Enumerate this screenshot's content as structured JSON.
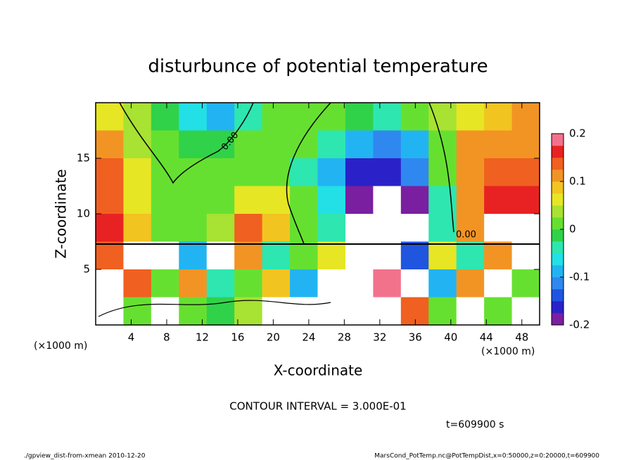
{
  "chart_data": {
    "type": "heatmap",
    "title": "disturbunce of potential temperature",
    "xlabel": "X-coordinate",
    "ylabel": "Z-coordinate",
    "xunit": "(×1000 m)",
    "xlim": [
      0,
      50
    ],
    "xticks": [
      4,
      8,
      12,
      16,
      20,
      24,
      28,
      32,
      36,
      40,
      44,
      48
    ],
    "ylim": [
      0,
      20
    ],
    "yticks": [
      5,
      10,
      15
    ],
    "clim": [
      -0.2,
      0.2
    ],
    "cticks": [
      -0.2,
      -0.1,
      0,
      0.1,
      0.2
    ],
    "colorscale": [
      "#7a1fa0",
      "#2a22c8",
      "#2055e0",
      "#2f88f0",
      "#22b4f2",
      "#22e0e6",
      "#2ee6b0",
      "#30d24a",
      "#66e030",
      "#a8e232",
      "#e6e624",
      "#f2c420",
      "#f29424",
      "#f06020",
      "#e82222",
      "#f2728c"
    ],
    "z": [
      [
        0.05,
        0.03,
        -0.02,
        -0.07,
        -0.08,
        -0.04,
        0.0,
        0.01,
        0.0,
        -0.02,
        -0.05,
        0.0,
        0.03,
        0.06,
        0.09,
        0.1
      ],
      [
        0.1,
        0.04,
        0.0,
        -0.02,
        -0.01,
        0.0,
        0.01,
        0.0,
        -0.04,
        -0.1,
        -0.12,
        -0.08,
        0.02,
        0.1,
        0.12,
        0.12
      ],
      [
        0.13,
        0.05,
        0.01,
        0.0,
        0.01,
        0.02,
        0.02,
        -0.03,
        -0.08,
        -0.16,
        -0.17,
        -0.12,
        0.0,
        0.12,
        0.15,
        0.15
      ],
      [
        0.15,
        0.06,
        0.01,
        0.0,
        0.02,
        0.05,
        0.07,
        0.01,
        -0.06,
        -0.2,
        -0.21,
        -0.18,
        -0.03,
        0.1,
        0.17,
        0.17
      ],
      [
        0.17,
        0.08,
        0.02,
        0.01,
        0.03,
        0.15,
        0.08,
        0.02,
        -0.03,
        -0.25,
        -0.25,
        -0.25,
        -0.05,
        0.1,
        0.2,
        0.25
      ],
      [
        0.15,
        -0.25,
        0.2,
        -0.1,
        0.25,
        0.1,
        -0.05,
        0.02,
        0.05,
        -0.25,
        0.2,
        -0.15,
        0.05,
        -0.05,
        0.1,
        -0.25
      ],
      [
        -0.25,
        0.15,
        0.02,
        0.1,
        -0.05,
        0.0,
        0.08,
        -0.1,
        -0.25,
        -0.25,
        0.18,
        -0.25,
        -0.1,
        0.1,
        -0.25,
        0.02
      ],
      [
        -0.25,
        0.02,
        -0.25,
        0.02,
        -0.02,
        0.03,
        -0.25,
        -0.25,
        0.2,
        -0.25,
        -0.25,
        0.15,
        0.0,
        -0.25,
        0.0,
        -0.25
      ]
    ],
    "contour_label": "0.00",
    "contour_interval": "CONTOUR INTERVAL = 3.000E-01",
    "time": "t=609900 s",
    "footer_left": "./gpview_dist-from-xmean  2010-12-20",
    "footer_right": "MarsCond_PotTemp.nc@PotTempDist,x=0:50000,z=0:20000,t=609900"
  }
}
